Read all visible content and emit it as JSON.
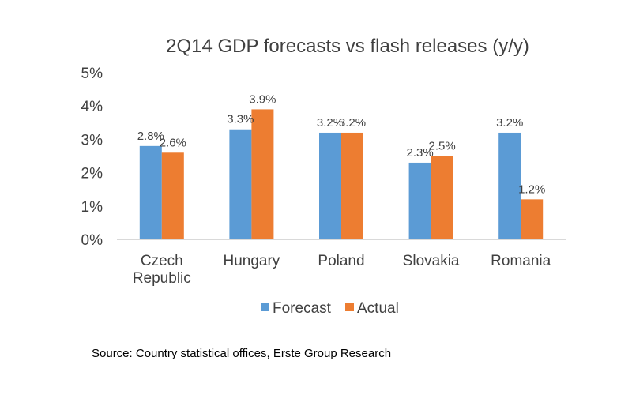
{
  "chart_data": {
    "type": "bar",
    "title": "2Q14 GDP forecasts vs flash releases (y/y)",
    "categories": [
      [
        "Czech",
        "Republic"
      ],
      [
        "Hungary"
      ],
      [
        "Poland"
      ],
      [
        "Slovakia"
      ],
      [
        "Romania"
      ]
    ],
    "series": [
      {
        "name": "Forecast",
        "color": "#5B9BD5",
        "values": [
          2.8,
          3.3,
          3.2,
          2.3,
          3.2
        ],
        "labels": [
          "2.8%",
          "3.3%",
          "3.2%",
          "2.3%",
          "3.2%"
        ]
      },
      {
        "name": "Actual",
        "color": "#ED7D31",
        "values": [
          2.6,
          3.9,
          3.2,
          2.5,
          1.2
        ],
        "labels": [
          "2.6%",
          "3.9%",
          "3.2%",
          "2.5%",
          "1.2%"
        ]
      }
    ],
    "ylim": [
      0,
      5
    ],
    "yticks": [
      0,
      1,
      2,
      3,
      4,
      5
    ],
    "ytick_labels": [
      "0%",
      "1%",
      "2%",
      "3%",
      "4%",
      "5%"
    ],
    "grid": false,
    "legend_position": "bottom"
  },
  "source": "Source: Country statistical offices, Erste Group Research"
}
